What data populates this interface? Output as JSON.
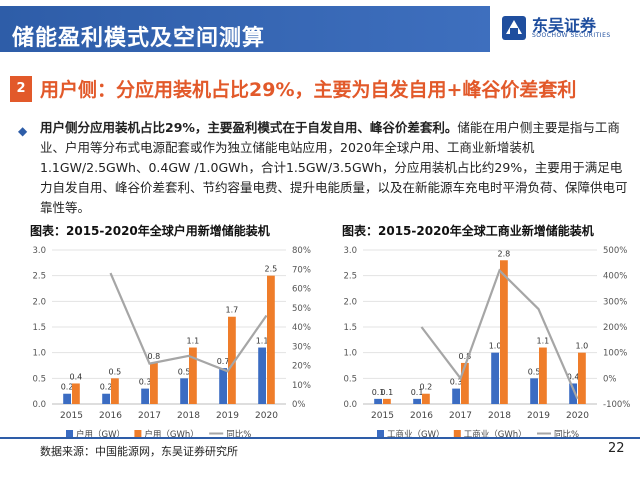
{
  "header": {
    "title": "储能盈利模式及空间测算",
    "logo_name": "东吴证券",
    "logo_en": "SOOCHOW SECURITIES"
  },
  "section": {
    "number": "2",
    "title": "用户侧：分应用装机占比29%，主要为自发自用+峰谷价差套利"
  },
  "bullet": {
    "lead": "用户侧分应用装机占比29%，主要盈利模式在于自发自用、峰谷价差套利。",
    "body": "储能在用户侧主要是指与工商业、户用等分布式电源配套或作为独立储能电站应用，2020年全球户用、工商业新增装机1.1GW/2.5GWh、0.4GW /1.0GWh，合计1.5GW/3.5GWh，分应用装机占比约29%，主要用于满足电力自发自用、峰谷价差套利、节约容量电费、提升电能质量，以及在新能源车充电时平滑负荷、保障供电可靠性等。"
  },
  "colors": {
    "primary": "#2e5da8",
    "accent": "#e2592a",
    "bar_gw": "#3b6cc2",
    "bar_gwh": "#ef7d2a",
    "line": "#a6a6a6"
  },
  "footer": {
    "source": "数据来源：中国能源网，东吴证券研究所",
    "page": "22"
  },
  "chart_data": [
    {
      "type": "bar",
      "title": "图表：2015-2020年全球户用新增储能装机",
      "categories": [
        "2015",
        "2016",
        "2017",
        "2018",
        "2019",
        "2020"
      ],
      "series": [
        {
          "name": "户用（GW）",
          "values": [
            0.2,
            0.2,
            0.3,
            0.5,
            0.7,
            1.1
          ],
          "axis": "left",
          "kind": "bar"
        },
        {
          "name": "户用（GWh）",
          "values": [
            0.4,
            0.5,
            0.8,
            1.1,
            1.7,
            2.5
          ],
          "axis": "left",
          "kind": "bar"
        },
        {
          "name": "同比%",
          "values": [
            null,
            68,
            21,
            25,
            17,
            46
          ],
          "axis": "right",
          "kind": "line"
        }
      ],
      "left_ticks": [
        "0.0",
        "0.5",
        "1.0",
        "1.5",
        "2.0",
        "2.5",
        "3.0"
      ],
      "right_ticks": [
        "0%",
        "10%",
        "20%",
        "30%",
        "40%",
        "50%",
        "60%",
        "70%",
        "80%"
      ],
      "ylim": [
        0,
        3
      ],
      "y2lim": [
        0,
        80
      ],
      "legend": "bottom"
    },
    {
      "type": "bar",
      "title": "图表：2015-2020年全球工商业新增储能装机",
      "categories": [
        "2015",
        "2016",
        "2017",
        "2018",
        "2019",
        "2020"
      ],
      "series": [
        {
          "name": "工商业（GW）",
          "values": [
            0.1,
            0.1,
            0.3,
            1.0,
            0.5,
            0.4
          ],
          "axis": "left",
          "kind": "bar"
        },
        {
          "name": "工商业（GWh）",
          "values": [
            0.1,
            0.2,
            0.8,
            2.8,
            1.1,
            1.0
          ],
          "axis": "left",
          "kind": "bar"
        },
        {
          "name": "同比%",
          "values": [
            null,
            200,
            0,
            420,
            270,
            -80
          ],
          "axis": "right",
          "kind": "line"
        }
      ],
      "left_ticks": [
        "0.0",
        "0.5",
        "1.0",
        "1.5",
        "2.0",
        "2.5",
        "3.0"
      ],
      "right_ticks": [
        "-100%",
        "0%",
        "100%",
        "200%",
        "300%",
        "400%",
        "500%"
      ],
      "ylim": [
        0,
        3
      ],
      "y2lim": [
        -100,
        500
      ],
      "legend": "bottom"
    }
  ]
}
